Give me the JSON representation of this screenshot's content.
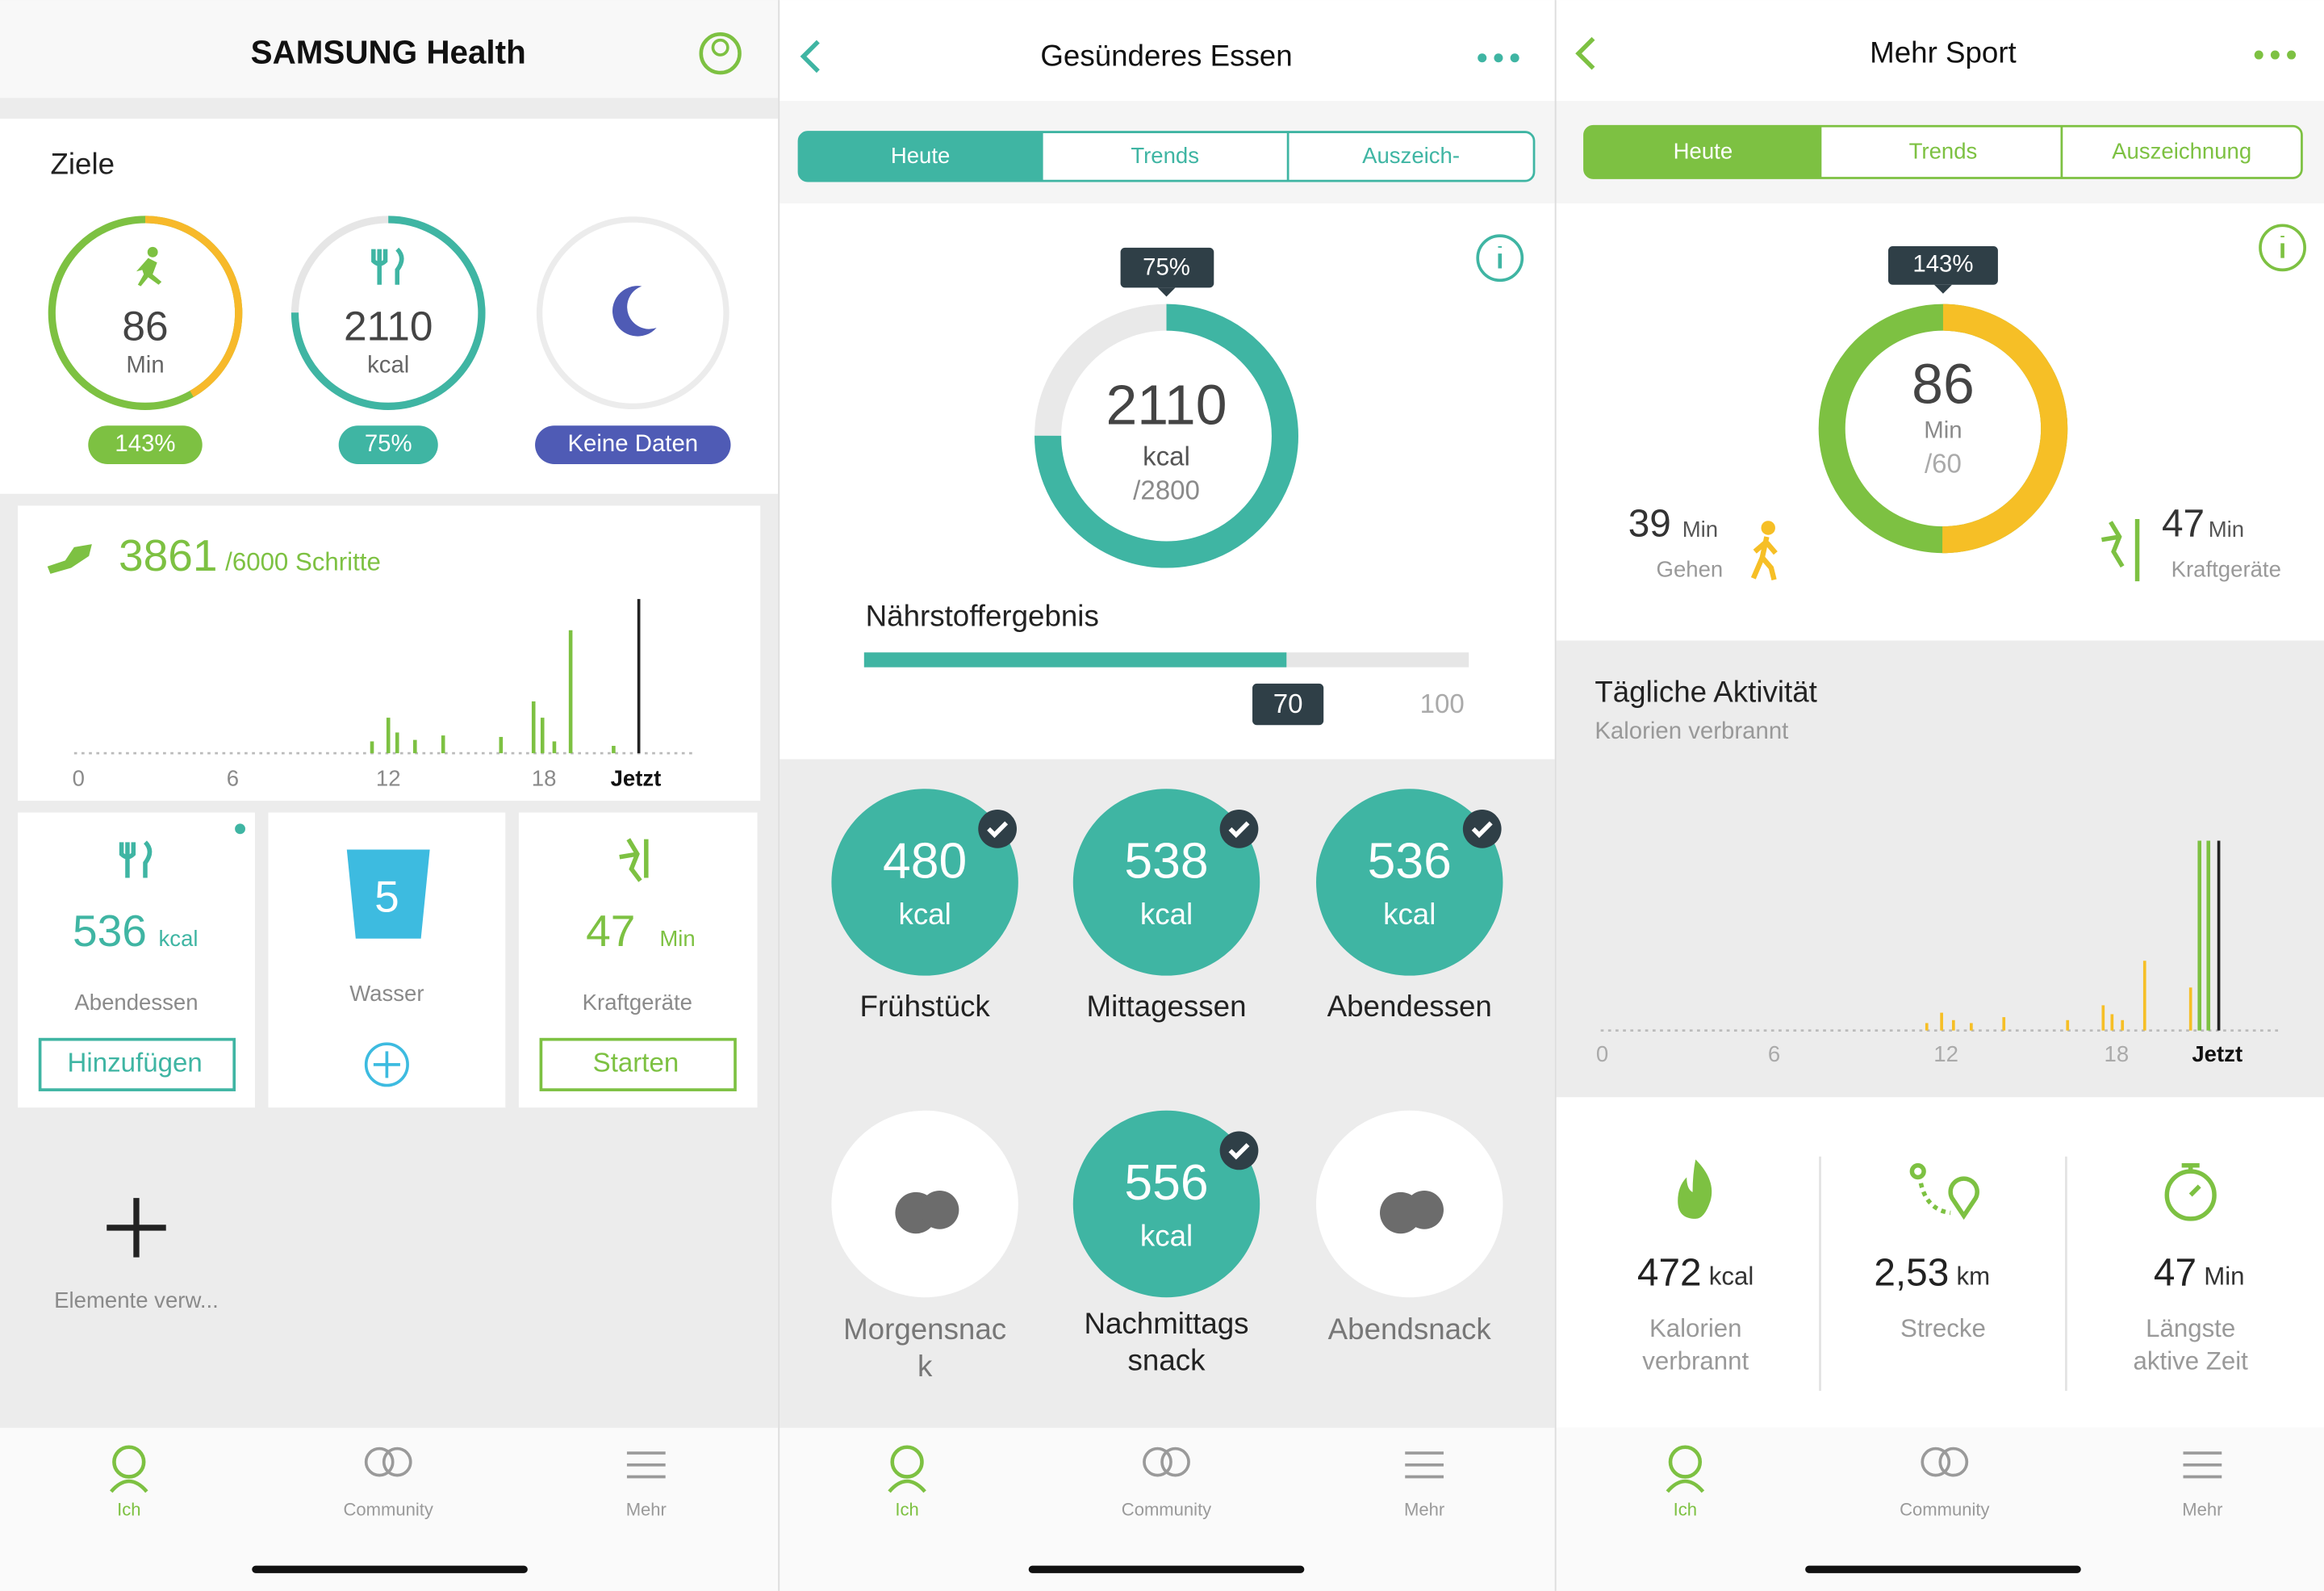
{
  "screens": [
    {
      "header": {
        "title": "SAMSUNG Health"
      },
      "goals": {
        "title": "Ziele",
        "items": [
          {
            "value": "86",
            "unit": "Min",
            "badge": "143%"
          },
          {
            "value": "2110",
            "unit": "kcal",
            "badge": "75%"
          },
          {
            "badge": "Keine Daten"
          }
        ]
      },
      "steps": {
        "count": "3861",
        "goal": "/6000 Schritte",
        "axis": [
          "0",
          "6",
          "12",
          "18",
          "Jetzt"
        ]
      },
      "tiles": [
        {
          "value": "536",
          "unit": "kcal",
          "label": "Abendessen",
          "button": "Hinzufügen"
        },
        {
          "value": "5",
          "label": "Wasser"
        },
        {
          "value": "47",
          "unit": "Min",
          "label": "Kraftgeräte",
          "button": "Starten"
        }
      ],
      "manage": "Elemente verw...",
      "nav": [
        "Ich",
        "Community",
        "Mehr"
      ]
    },
    {
      "header": {
        "title": "Gesünderes Essen"
      },
      "tabs": [
        "Heute",
        "Trends",
        "Auszeich-"
      ],
      "summary": {
        "badge": "75%",
        "value": "2110",
        "unit": "kcal",
        "goal": "/2800"
      },
      "score": {
        "title": "Nährstoffergebnis",
        "value": "70",
        "max": "100"
      },
      "meals": [
        {
          "value": "480",
          "unit": "kcal",
          "label": [
            "Frühstück"
          ]
        },
        {
          "value": "538",
          "unit": "kcal",
          "label": [
            "Mittagessen"
          ]
        },
        {
          "value": "536",
          "unit": "kcal",
          "label": [
            "Abendessen"
          ]
        },
        {
          "label": [
            "Morgensnac",
            "k"
          ]
        },
        {
          "value": "556",
          "unit": "kcal",
          "label": [
            "Nachmittags",
            "snack"
          ]
        },
        {
          "label": [
            "Abendsnack"
          ]
        }
      ],
      "nav": [
        "Ich",
        "Community",
        "Mehr"
      ]
    },
    {
      "header": {
        "title": "Mehr Sport"
      },
      "tabs": [
        "Heute",
        "Trends",
        "Auszeichnung"
      ],
      "summary": {
        "badge": "143%",
        "value": "86",
        "unit": "Min",
        "goal": "/60"
      },
      "parts": [
        {
          "value": "39",
          "unit": "Min",
          "label": "Gehen"
        },
        {
          "value": "47",
          "unit": "Min",
          "label": "Kraftgeräte"
        }
      ],
      "activity": {
        "title": "Tägliche Aktivität",
        "subtitle": "Kalorien verbrannt",
        "axis": [
          "0",
          "6",
          "12",
          "18",
          "Jetzt"
        ]
      },
      "stats": [
        {
          "value": "472",
          "unit": "kcal",
          "label": [
            "Kalorien",
            "verbrannt"
          ]
        },
        {
          "value": "2,53",
          "unit": "km",
          "label": [
            "Strecke"
          ]
        },
        {
          "value": "47",
          "unit": "Min",
          "label": [
            "Längste",
            "aktive Zeit"
          ]
        }
      ],
      "nav": [
        "Ich",
        "Community",
        "Mehr"
      ]
    }
  ]
}
